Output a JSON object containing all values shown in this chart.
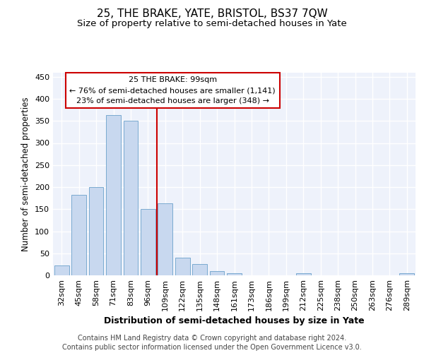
{
  "title": "25, THE BRAKE, YATE, BRISTOL, BS37 7QW",
  "subtitle": "Size of property relative to semi-detached houses in Yate",
  "xlabel": "Distribution of semi-detached houses by size in Yate",
  "ylabel": "Number of semi-detached properties",
  "categories": [
    "32sqm",
    "45sqm",
    "58sqm",
    "71sqm",
    "83sqm",
    "96sqm",
    "109sqm",
    "122sqm",
    "135sqm",
    "148sqm",
    "161sqm",
    "173sqm",
    "186sqm",
    "199sqm",
    "212sqm",
    "225sqm",
    "238sqm",
    "250sqm",
    "263sqm",
    "276sqm",
    "289sqm"
  ],
  "values": [
    22,
    182,
    200,
    363,
    350,
    150,
    163,
    40,
    25,
    10,
    5,
    0,
    0,
    0,
    5,
    0,
    0,
    0,
    0,
    0,
    5
  ],
  "bar_color": "#c8d8ef",
  "bar_edge_color": "#7aaad0",
  "highlight_index": 5,
  "highlight_color": "#cc0000",
  "annotation_line1": "25 THE BRAKE: 99sqm",
  "annotation_line2": "← 76% of semi-detached houses are smaller (1,141)",
  "annotation_line3": "23% of semi-detached houses are larger (348) →",
  "footnote1": "Contains HM Land Registry data © Crown copyright and database right 2024.",
  "footnote2": "Contains public sector information licensed under the Open Government Licence v3.0.",
  "ylim": [
    0,
    460
  ],
  "background_color": "#eef2fb",
  "grid_color": "#ffffff",
  "title_fontsize": 11,
  "subtitle_fontsize": 9.5,
  "xlabel_fontsize": 9,
  "ylabel_fontsize": 8.5,
  "tick_fontsize": 8,
  "footnote_fontsize": 7
}
